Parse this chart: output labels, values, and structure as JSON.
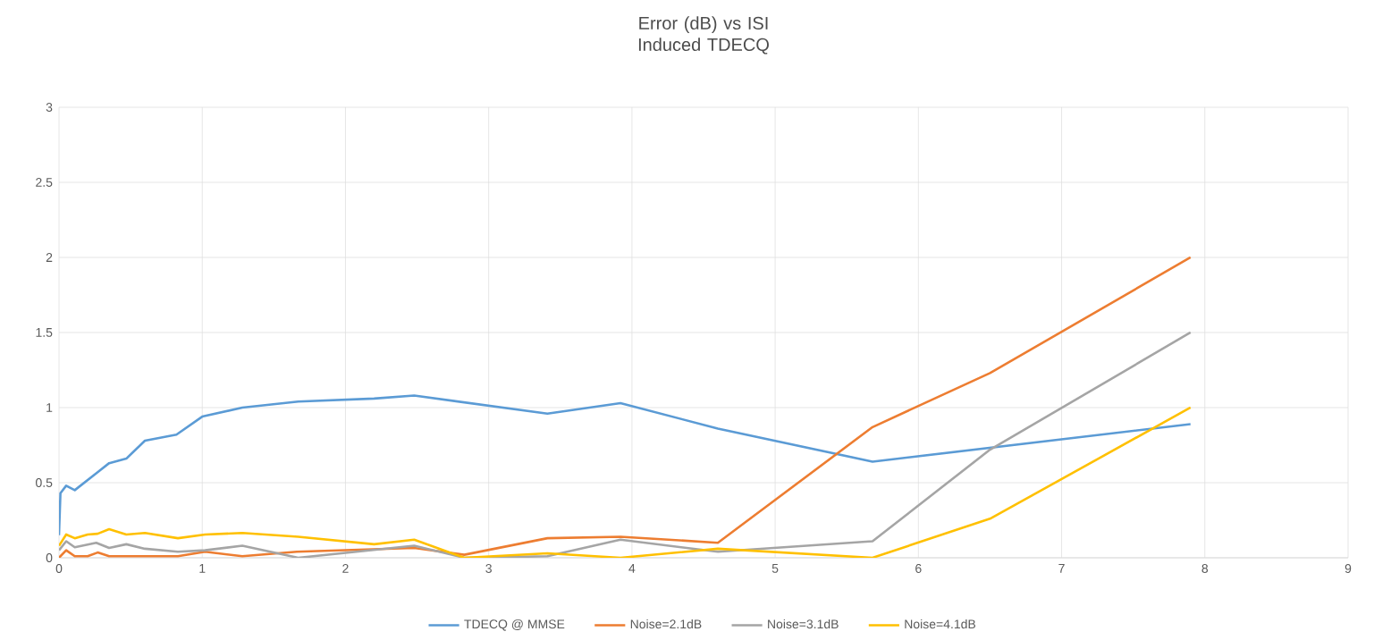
{
  "chart_data": {
    "type": "line",
    "title": "Error (dB) vs ISI Induced TDECQ",
    "xlim": [
      0,
      9
    ],
    "xticks": [
      0,
      1,
      2,
      3,
      4,
      5,
      6,
      7,
      8,
      9
    ],
    "ylim": [
      0,
      3
    ],
    "yticks": [
      0,
      0.5,
      1,
      1.5,
      2,
      2.5,
      3
    ],
    "grid": true,
    "legend": "bottom",
    "marker": "none",
    "line_style": "solid",
    "series": [
      {
        "name": "TDECQ @ MMSE",
        "color": "#5b9bd5",
        "x": [
          0,
          0.01,
          0.05,
          0.11,
          0.27,
          0.35,
          0.47,
          0.6,
          0.82,
          1.0,
          1.28,
          1.67,
          2.2,
          2.48,
          3.41,
          3.92,
          4.6,
          5.68,
          7.9
        ],
        "values": [
          0.15,
          0.43,
          0.48,
          0.45,
          0.57,
          0.63,
          0.66,
          0.78,
          0.82,
          0.94,
          1.0,
          1.04,
          1.06,
          1.08,
          0.96,
          1.03,
          0.86,
          0.64,
          0.89
        ]
      },
      {
        "name": "Noise=2.1dB",
        "color": "#ed7d31",
        "x": [
          0,
          0.05,
          0.11,
          0.2,
          0.27,
          0.35,
          0.83,
          1.02,
          1.28,
          1.66,
          2.48,
          2.83,
          3.41,
          3.92,
          4.6,
          5.68,
          6.5,
          7.9
        ],
        "values": [
          0.0,
          0.05,
          0.01,
          0.01,
          0.035,
          0.01,
          0.01,
          0.04,
          0.01,
          0.04,
          0.065,
          0.02,
          0.13,
          0.14,
          0.1,
          0.87,
          1.23,
          2.0
        ]
      },
      {
        "name": "Noise=3.1dB",
        "color": "#a5a5a5",
        "x": [
          0,
          0.05,
          0.11,
          0.26,
          0.35,
          0.47,
          0.6,
          0.83,
          1.02,
          1.28,
          1.67,
          2.48,
          2.83,
          3.41,
          3.92,
          4.6,
          5.68,
          6.5,
          7.9
        ],
        "values": [
          0.05,
          0.11,
          0.07,
          0.1,
          0.065,
          0.09,
          0.06,
          0.04,
          0.05,
          0.08,
          0.0,
          0.08,
          0.0,
          0.01,
          0.12,
          0.04,
          0.11,
          0.72,
          1.5
        ]
      },
      {
        "name": "Noise=4.1dB",
        "color": "#ffc000",
        "x": [
          0,
          0.05,
          0.11,
          0.2,
          0.27,
          0.35,
          0.47,
          0.6,
          0.83,
          1.02,
          1.28,
          1.67,
          2.2,
          2.48,
          2.83,
          3.41,
          3.92,
          4.6,
          5.68,
          6.5,
          7.9
        ],
        "values": [
          0.08,
          0.155,
          0.13,
          0.155,
          0.16,
          0.19,
          0.155,
          0.165,
          0.13,
          0.155,
          0.165,
          0.14,
          0.09,
          0.12,
          0.0,
          0.03,
          0.0,
          0.06,
          0.0,
          0.26,
          1.0
        ]
      }
    ]
  }
}
